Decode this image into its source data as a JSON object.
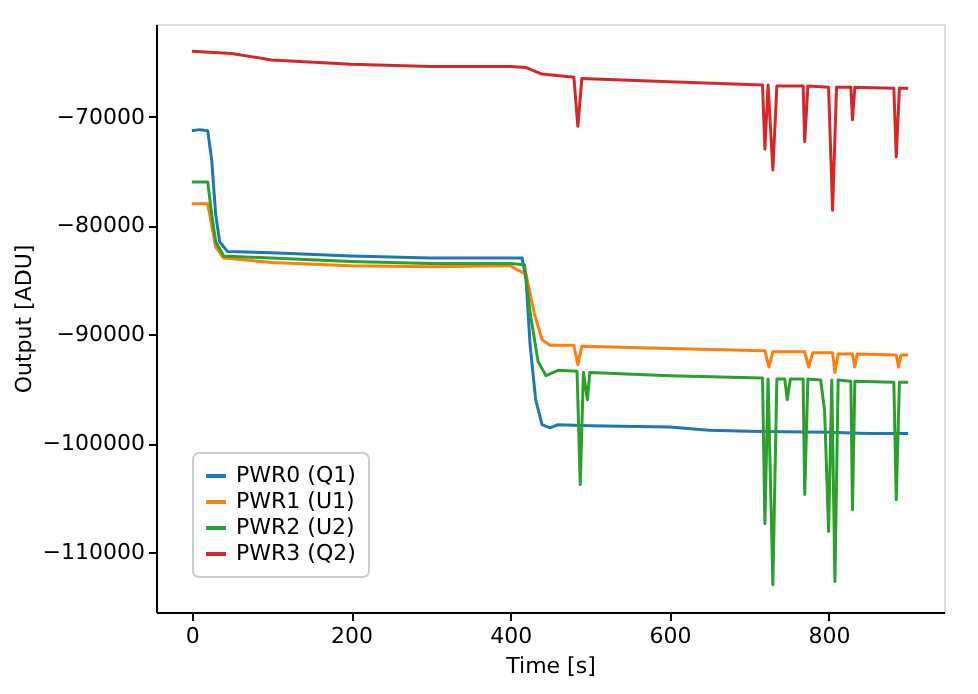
{
  "chart_data": {
    "type": "line",
    "xlabel": "Time [s]",
    "ylabel": "Output [ADU]",
    "xlim": [
      -45,
      945
    ],
    "ylim": [
      -115500,
      -61500
    ],
    "xticks": [
      0,
      200,
      400,
      600,
      800
    ],
    "yticks": [
      -110000,
      -100000,
      -90000,
      -80000,
      -70000
    ],
    "grid": false,
    "legend": "bottom left",
    "marker": "none",
    "line_style": "solid",
    "series": [
      {
        "name": "PWR0 (Q1)",
        "color": "#1f77b4",
        "x": [
          0,
          10,
          20,
          25,
          30,
          35,
          45,
          100,
          200,
          300,
          400,
          415,
          420,
          425,
          432,
          440,
          450,
          460,
          500,
          600,
          650,
          700,
          800,
          850,
          900
        ],
        "values": [
          -71300,
          -71200,
          -71300,
          -74000,
          -79000,
          -81500,
          -82400,
          -82500,
          -82800,
          -83000,
          -83000,
          -83000,
          -85000,
          -91000,
          -96000,
          -98300,
          -98600,
          -98300,
          -98400,
          -98500,
          -98800,
          -98900,
          -99000,
          -99100,
          -99100
        ]
      },
      {
        "name": "PWR1 (U1)",
        "color": "#ff7f0e",
        "x": [
          0,
          20,
          25,
          30,
          40,
          100,
          200,
          300,
          400,
          420,
          430,
          440,
          450,
          480,
          485,
          490,
          600,
          720,
          725,
          730,
          770,
          775,
          780,
          805,
          808,
          812,
          830,
          833,
          836,
          885,
          888,
          891,
          900
        ],
        "values": [
          -78000,
          -78000,
          -80000,
          -82000,
          -83000,
          -83400,
          -83700,
          -83800,
          -83700,
          -84500,
          -88000,
          -90500,
          -91000,
          -91000,
          -92800,
          -91100,
          -91300,
          -91500,
          -93000,
          -91600,
          -91600,
          -93000,
          -91700,
          -91700,
          -93500,
          -91800,
          -91800,
          -93000,
          -91800,
          -91900,
          -93000,
          -91900,
          -91900
        ]
      },
      {
        "name": "PWR2 (U2)",
        "color": "#2ca02c",
        "x": [
          0,
          20,
          25,
          30,
          40,
          100,
          200,
          300,
          400,
          418,
          425,
          435,
          445,
          460,
          484,
          488,
          492,
          497,
          500,
          600,
          717,
          720,
          724,
          730,
          735,
          745,
          748,
          752,
          768,
          770,
          774,
          790,
          795,
          800,
          804,
          808,
          812,
          828,
          830,
          833,
          882,
          885,
          889,
          900
        ],
        "values": [
          -76000,
          -76000,
          -79000,
          -81500,
          -82800,
          -83000,
          -83300,
          -83500,
          -83500,
          -83600,
          -88000,
          -92500,
          -93800,
          -93300,
          -93400,
          -103800,
          -93500,
          -96000,
          -93500,
          -93800,
          -94000,
          -107400,
          -94100,
          -113000,
          -94100,
          -94100,
          -96000,
          -94100,
          -94100,
          -104700,
          -94100,
          -94200,
          -97000,
          -108100,
          -94200,
          -112700,
          -94200,
          -94300,
          -106100,
          -94300,
          -94400,
          -105200,
          -94400,
          -94400
        ]
      },
      {
        "name": "PWR3 (Q2)",
        "color": "#d62728",
        "x": [
          0,
          50,
          100,
          200,
          300,
          400,
          420,
          440,
          480,
          485,
          490,
          600,
          717,
          720,
          724,
          730,
          735,
          768,
          770,
          774,
          800,
          805,
          810,
          828,
          830,
          833,
          882,
          885,
          889,
          900
        ],
        "values": [
          -64000,
          -64200,
          -64800,
          -65200,
          -65400,
          -65400,
          -65500,
          -66100,
          -66400,
          -70900,
          -66500,
          -66800,
          -67100,
          -73000,
          -67100,
          -74900,
          -67200,
          -67200,
          -72300,
          -67200,
          -67300,
          -78600,
          -67300,
          -67300,
          -70300,
          -67300,
          -67400,
          -73700,
          -67400,
          -67400
        ]
      }
    ]
  }
}
